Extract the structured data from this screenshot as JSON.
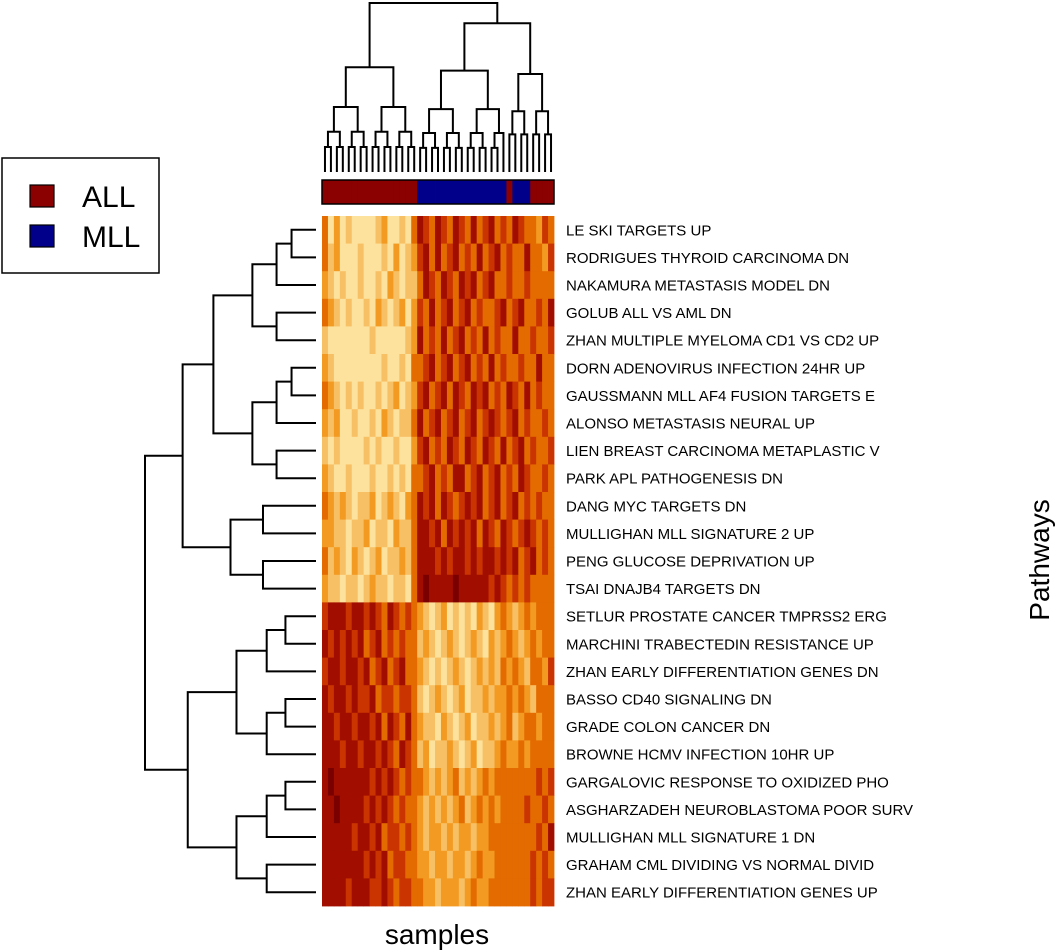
{
  "chart_data": {
    "type": "heatmap",
    "xlabel": "samples",
    "ylabel": "Pathways",
    "legend": {
      "placement": "top-left",
      "entries": [
        {
          "label": "ALL",
          "color": "#8B0000"
        },
        {
          "label": "MLL",
          "color": "#00008B"
        }
      ]
    },
    "rows": [
      "LE SKI TARGETS UP",
      "RODRIGUES THYROID CARCINOMA DN",
      "NAKAMURA METASTASIS MODEL DN",
      "GOLUB ALL VS AML DN",
      "ZHAN MULTIPLE MYELOMA CD1 VS CD2 UP",
      "DORN ADENOVIRUS INFECTION 24HR UP",
      "GAUSSMANN MLL AF4 FUSION TARGETS E",
      "ALONSO METASTASIS NEURAL UP",
      "LIEN BREAST CARCINOMA METAPLASTIC V",
      "PARK APL PATHOGENESIS DN",
      "DANG MYC TARGETS DN",
      "MULLIGHAN MLL SIGNATURE 2 UP",
      "PENG GLUCOSE DEPRIVATION UP",
      "TSAI DNAJB4 TARGETS DN",
      "SETLUR PROSTATE CANCER TMPRSS2 ERG",
      "MARCHINI TRABECTEDIN RESISTANCE UP",
      "ZHAN EARLY DIFFERENTIATION GENES DN",
      "BASSO CD40 SIGNALING DN",
      "GRADE COLON CANCER DN",
      "BROWNE HCMV INFECTION 10HR UP",
      "GARGALOVIC RESPONSE TO OXIDIZED PHO",
      "ASGHARZADEH NEUROBLASTOMA POOR SURV",
      "MULLIGHAN MLL SIGNATURE 1 DN",
      "GRAHAM CML DIVIDING VS NORMAL DIVID",
      "ZHAN EARLY DIFFERENTIATION GENES UP"
    ],
    "column_groups": [
      "ALL",
      "ALL",
      "ALL",
      "ALL",
      "ALL",
      "ALL",
      "ALL",
      "ALL",
      "ALL",
      "ALL",
      "ALL",
      "ALL",
      "ALL",
      "ALL",
      "ALL",
      "ALL",
      "MLL",
      "MLL",
      "MLL",
      "MLL",
      "MLL",
      "MLL",
      "MLL",
      "MLL",
      "MLL",
      "MLL",
      "MLL",
      "MLL",
      "MLL",
      "MLL",
      "MLL",
      "ALL",
      "MLL",
      "MLL",
      "MLL",
      "ALL",
      "ALL",
      "ALL",
      "ALL"
    ],
    "color_scale": [
      "#FFF6C8",
      "#FCE29C",
      "#F8C064",
      "#F29A22",
      "#E36B00",
      "#C93400",
      "#A10E00",
      "#7A0000"
    ],
    "values": [
      [
        0.5,
        0.2,
        0.4,
        0.2,
        0.3,
        0.1,
        0.2,
        0.1,
        0.2,
        0.3,
        0.4,
        0.2,
        0.1,
        0.3,
        0.2,
        0.5,
        0.8,
        0.7,
        0.6,
        0.8,
        0.7,
        0.6,
        0.9,
        0.7,
        0.6,
        0.8,
        0.5,
        0.7,
        0.9,
        0.6,
        0.7,
        0.6,
        0.8,
        0.7,
        0.5,
        0.6,
        0.4,
        0.7,
        0.6
      ],
      [
        0.6,
        0.3,
        0.4,
        0.2,
        0.1,
        0.2,
        0.3,
        0.1,
        0.2,
        0.1,
        0.3,
        0.2,
        0.4,
        0.1,
        0.3,
        0.4,
        0.7,
        0.8,
        0.6,
        0.9,
        0.5,
        0.7,
        0.8,
        0.6,
        0.7,
        0.6,
        0.8,
        0.5,
        0.7,
        0.8,
        0.6,
        0.7,
        0.5,
        0.6,
        0.8,
        0.5,
        0.6,
        0.4,
        0.7
      ],
      [
        0.4,
        0.3,
        0.2,
        0.3,
        0.1,
        0.2,
        0.3,
        0.2,
        0.1,
        0.3,
        0.2,
        0.4,
        0.3,
        0.2,
        0.3,
        0.3,
        0.6,
        0.9,
        0.7,
        0.6,
        0.8,
        0.7,
        0.6,
        0.8,
        0.7,
        0.9,
        0.6,
        0.7,
        0.8,
        0.5,
        0.6,
        0.7,
        0.6,
        0.5,
        0.7,
        0.6,
        0.5,
        0.6,
        0.5
      ],
      [
        0.5,
        0.4,
        0.3,
        0.2,
        0.3,
        0.2,
        0.1,
        0.3,
        0.2,
        0.4,
        0.3,
        0.2,
        0.3,
        0.4,
        0.2,
        0.4,
        0.7,
        0.6,
        0.8,
        0.5,
        0.7,
        0.9,
        0.6,
        0.7,
        0.8,
        0.6,
        0.7,
        0.5,
        0.6,
        0.7,
        0.9,
        0.6,
        0.7,
        0.8,
        0.6,
        0.5,
        0.7,
        0.6,
        0.8
      ],
      [
        0.3,
        0.2,
        0.1,
        0.1,
        0.2,
        0.1,
        0.2,
        0.1,
        0.3,
        0.2,
        0.1,
        0.2,
        0.1,
        0.2,
        0.3,
        0.4,
        0.8,
        0.6,
        0.7,
        0.5,
        0.8,
        0.6,
        0.7,
        0.9,
        0.6,
        0.7,
        0.5,
        0.8,
        0.6,
        0.7,
        0.5,
        0.6,
        0.8,
        0.5,
        0.6,
        0.7,
        0.5,
        0.6,
        0.7
      ],
      [
        0.4,
        0.3,
        0.2,
        0.1,
        0.1,
        0.2,
        0.1,
        0.2,
        0.1,
        0.2,
        0.3,
        0.1,
        0.2,
        0.3,
        0.2,
        0.5,
        0.6,
        0.7,
        0.9,
        0.6,
        0.7,
        0.8,
        0.5,
        0.7,
        0.8,
        0.6,
        0.7,
        0.6,
        0.8,
        0.6,
        0.7,
        0.5,
        0.6,
        0.7,
        0.5,
        0.6,
        0.8,
        0.5,
        0.6
      ],
      [
        0.5,
        0.4,
        0.3,
        0.2,
        0.3,
        0.2,
        0.3,
        0.2,
        0.2,
        0.3,
        0.2,
        0.3,
        0.4,
        0.2,
        0.3,
        0.4,
        0.7,
        0.8,
        0.6,
        0.7,
        0.9,
        0.6,
        0.8,
        0.7,
        0.6,
        0.8,
        0.7,
        0.9,
        0.6,
        0.7,
        0.6,
        0.8,
        0.7,
        0.6,
        0.8,
        0.6,
        0.7,
        0.5,
        0.6
      ],
      [
        0.4,
        0.3,
        0.4,
        0.2,
        0.1,
        0.3,
        0.2,
        0.2,
        0.3,
        0.2,
        0.4,
        0.3,
        0.2,
        0.3,
        0.3,
        0.5,
        0.8,
        0.6,
        0.7,
        0.8,
        0.6,
        0.7,
        0.9,
        0.6,
        0.7,
        0.8,
        0.6,
        0.7,
        0.8,
        0.7,
        0.6,
        0.7,
        0.8,
        0.6,
        0.7,
        0.5,
        0.6,
        0.7,
        0.6
      ],
      [
        0.3,
        0.2,
        0.3,
        0.1,
        0.2,
        0.2,
        0.1,
        0.3,
        0.2,
        0.3,
        0.2,
        0.1,
        0.3,
        0.2,
        0.2,
        0.4,
        0.7,
        0.9,
        0.6,
        0.7,
        0.6,
        0.8,
        0.7,
        0.6,
        0.8,
        0.7,
        0.6,
        0.8,
        0.7,
        0.6,
        0.8,
        0.6,
        0.7,
        0.8,
        0.6,
        0.7,
        0.6,
        0.5,
        0.7
      ],
      [
        0.4,
        0.3,
        0.2,
        0.2,
        0.3,
        0.1,
        0.2,
        0.2,
        0.3,
        0.1,
        0.2,
        0.3,
        0.2,
        0.3,
        0.2,
        0.5,
        0.6,
        0.7,
        0.8,
        0.6,
        0.7,
        0.6,
        0.8,
        0.9,
        0.6,
        0.7,
        0.8,
        0.6,
        0.7,
        0.8,
        0.6,
        0.7,
        0.6,
        0.8,
        0.7,
        0.6,
        0.5,
        0.7,
        0.6
      ],
      [
        0.5,
        0.4,
        0.3,
        0.4,
        0.3,
        0.2,
        0.3,
        0.3,
        0.4,
        0.2,
        0.3,
        0.4,
        0.3,
        0.2,
        0.4,
        0.5,
        0.8,
        0.7,
        0.9,
        0.6,
        0.8,
        0.7,
        0.6,
        0.7,
        0.8,
        0.7,
        0.9,
        0.6,
        0.7,
        0.8,
        0.6,
        0.7,
        0.8,
        0.6,
        0.7,
        0.6,
        0.7,
        0.5,
        0.6
      ],
      [
        0.4,
        0.4,
        0.3,
        0.3,
        0.2,
        0.3,
        0.3,
        0.4,
        0.2,
        0.3,
        0.3,
        0.2,
        0.4,
        0.3,
        0.3,
        0.6,
        0.9,
        0.8,
        0.7,
        0.8,
        0.6,
        0.9,
        0.7,
        0.8,
        0.7,
        0.9,
        0.6,
        0.8,
        0.7,
        0.6,
        0.8,
        0.7,
        0.6,
        0.7,
        0.8,
        0.7,
        0.6,
        0.7,
        0.6
      ],
      [
        0.5,
        0.3,
        0.4,
        0.3,
        0.2,
        0.4,
        0.3,
        0.2,
        0.3,
        0.4,
        0.2,
        0.3,
        0.3,
        0.4,
        0.3,
        0.6,
        0.8,
        0.9,
        0.8,
        0.7,
        0.9,
        0.7,
        0.8,
        0.9,
        0.7,
        0.8,
        0.7,
        0.9,
        0.8,
        0.7,
        0.8,
        0.7,
        0.8,
        0.6,
        0.7,
        0.8,
        0.6,
        0.7,
        0.6
      ],
      [
        0.4,
        0.3,
        0.3,
        0.2,
        0.3,
        0.3,
        0.2,
        0.3,
        0.4,
        0.3,
        0.3,
        0.2,
        0.3,
        0.3,
        0.2,
        0.5,
        0.9,
        1.0,
        0.8,
        0.9,
        0.8,
        0.9,
        1.0,
        0.8,
        0.9,
        0.8,
        0.9,
        0.8,
        0.7,
        0.8,
        0.7,
        0.6,
        0.7,
        0.6,
        0.7,
        0.6,
        0.5,
        0.6,
        0.5
      ],
      [
        0.7,
        0.8,
        0.9,
        0.8,
        0.7,
        0.8,
        0.9,
        0.7,
        0.8,
        0.7,
        0.6,
        0.8,
        0.7,
        0.6,
        0.7,
        0.6,
        0.4,
        0.3,
        0.2,
        0.3,
        0.4,
        0.2,
        0.3,
        0.2,
        0.3,
        0.2,
        0.4,
        0.3,
        0.2,
        0.4,
        0.5,
        0.4,
        0.3,
        0.4,
        0.5,
        0.4,
        0.6,
        0.5,
        0.6
      ],
      [
        0.8,
        0.7,
        0.9,
        0.7,
        0.8,
        0.7,
        0.8,
        0.6,
        0.7,
        0.8,
        0.6,
        0.7,
        0.6,
        0.7,
        0.6,
        0.5,
        0.3,
        0.4,
        0.3,
        0.2,
        0.3,
        0.4,
        0.3,
        0.2,
        0.3,
        0.4,
        0.3,
        0.2,
        0.4,
        0.3,
        0.4,
        0.5,
        0.4,
        0.3,
        0.4,
        0.5,
        0.4,
        0.6,
        0.5
      ],
      [
        0.7,
        0.9,
        0.8,
        0.7,
        0.8,
        0.8,
        0.7,
        0.8,
        0.6,
        0.7,
        0.8,
        0.6,
        0.7,
        0.8,
        0.6,
        0.5,
        0.4,
        0.3,
        0.2,
        0.3,
        0.2,
        0.3,
        0.4,
        0.3,
        0.2,
        0.3,
        0.4,
        0.3,
        0.4,
        0.3,
        0.5,
        0.4,
        0.5,
        0.4,
        0.3,
        0.5,
        0.6,
        0.4,
        0.7
      ],
      [
        0.8,
        0.7,
        0.8,
        0.9,
        0.7,
        0.8,
        0.7,
        0.7,
        0.8,
        0.6,
        0.7,
        0.7,
        0.6,
        0.7,
        0.7,
        0.6,
        0.3,
        0.2,
        0.3,
        0.4,
        0.3,
        0.2,
        0.3,
        0.4,
        0.2,
        0.3,
        0.3,
        0.4,
        0.3,
        0.4,
        0.4,
        0.5,
        0.4,
        0.5,
        0.4,
        0.3,
        0.5,
        0.6,
        0.5
      ],
      [
        0.9,
        0.8,
        0.7,
        0.8,
        0.8,
        0.7,
        0.8,
        0.9,
        0.7,
        0.8,
        0.6,
        0.8,
        0.7,
        0.6,
        0.8,
        0.5,
        0.4,
        0.3,
        0.3,
        0.2,
        0.4,
        0.3,
        0.2,
        0.3,
        0.4,
        0.2,
        0.3,
        0.3,
        0.4,
        0.3,
        0.4,
        0.5,
        0.3,
        0.4,
        0.5,
        0.6,
        0.4,
        0.5,
        0.6
      ],
      [
        0.8,
        0.9,
        0.8,
        0.7,
        0.9,
        0.8,
        0.7,
        0.8,
        0.8,
        0.7,
        0.8,
        0.7,
        0.6,
        0.8,
        0.7,
        0.6,
        0.3,
        0.4,
        0.2,
        0.3,
        0.3,
        0.4,
        0.3,
        0.2,
        0.3,
        0.4,
        0.2,
        0.3,
        0.3,
        0.4,
        0.5,
        0.4,
        0.4,
        0.5,
        0.4,
        0.5,
        0.6,
        0.5,
        0.6
      ],
      [
        0.9,
        1.0,
        0.9,
        0.8,
        0.9,
        0.8,
        0.9,
        0.8,
        0.7,
        0.8,
        0.7,
        0.8,
        0.7,
        0.6,
        0.7,
        0.6,
        0.5,
        0.4,
        0.3,
        0.4,
        0.3,
        0.4,
        0.5,
        0.3,
        0.4,
        0.3,
        0.4,
        0.5,
        0.4,
        0.5,
        0.6,
        0.5,
        0.6,
        0.5,
        0.6,
        0.5,
        0.7,
        0.6,
        0.7
      ],
      [
        0.8,
        0.9,
        1.0,
        0.9,
        0.8,
        0.9,
        0.8,
        0.7,
        0.8,
        0.7,
        0.8,
        0.7,
        0.6,
        0.7,
        0.6,
        0.5,
        0.4,
        0.3,
        0.4,
        0.3,
        0.4,
        0.3,
        0.4,
        0.5,
        0.3,
        0.4,
        0.5,
        0.4,
        0.5,
        0.4,
        0.6,
        0.5,
        0.6,
        0.5,
        0.7,
        0.6,
        0.5,
        0.7,
        0.6
      ],
      [
        0.9,
        0.8,
        0.9,
        0.8,
        0.9,
        0.7,
        0.8,
        0.8,
        0.7,
        0.8,
        0.6,
        0.7,
        0.7,
        0.6,
        0.7,
        0.6,
        0.4,
        0.3,
        0.4,
        0.4,
        0.3,
        0.4,
        0.3,
        0.4,
        0.4,
        0.3,
        0.4,
        0.4,
        0.5,
        0.5,
        0.6,
        0.5,
        0.5,
        0.6,
        0.5,
        0.6,
        0.7,
        0.6,
        0.8
      ],
      [
        0.8,
        0.9,
        0.8,
        0.9,
        0.8,
        0.8,
        0.9,
        0.7,
        0.8,
        0.7,
        0.8,
        0.6,
        0.7,
        0.7,
        0.6,
        0.5,
        0.4,
        0.4,
        0.3,
        0.4,
        0.4,
        0.3,
        0.4,
        0.4,
        0.3,
        0.4,
        0.5,
        0.4,
        0.4,
        0.5,
        0.5,
        0.6,
        0.5,
        0.5,
        0.6,
        0.7,
        0.6,
        0.7,
        0.6
      ],
      [
        0.9,
        0.8,
        0.8,
        0.9,
        0.7,
        0.8,
        0.8,
        0.8,
        0.7,
        0.7,
        0.8,
        0.7,
        0.6,
        0.7,
        0.7,
        0.6,
        0.5,
        0.4,
        0.4,
        0.3,
        0.4,
        0.4,
        0.4,
        0.3,
        0.4,
        0.5,
        0.4,
        0.4,
        0.5,
        0.5,
        0.6,
        0.5,
        0.6,
        0.6,
        0.5,
        0.7,
        0.6,
        0.7,
        0.7
      ]
    ]
  }
}
